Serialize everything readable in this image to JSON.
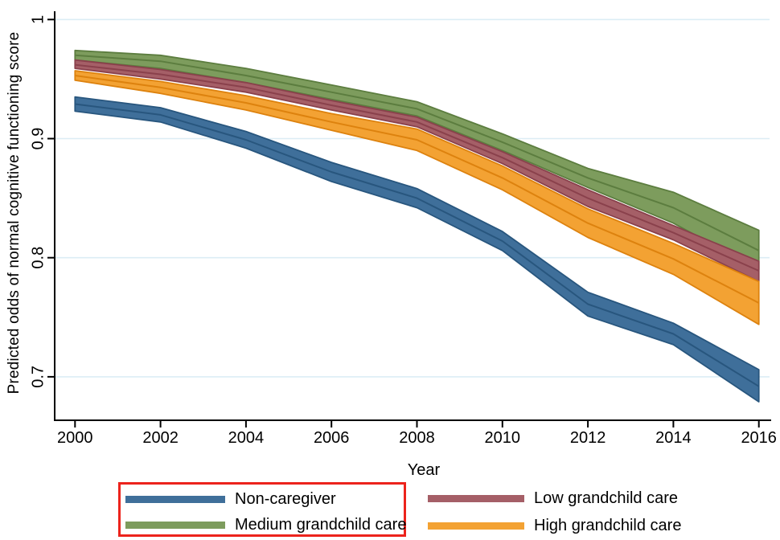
{
  "figure": {
    "background": "#ffffff",
    "axis_color": "#000000"
  },
  "chart_data": {
    "type": "area",
    "title": "",
    "xlabel": "Year",
    "ylabel": "Predicted odds of normal cognitive functioning score",
    "x": [
      2000,
      2002,
      2004,
      2006,
      2008,
      2010,
      2012,
      2014,
      2016
    ],
    "xtick_labels": [
      "2000",
      "2002",
      "2004",
      "2006",
      "2008",
      "2010",
      "2012",
      "2014",
      "2016"
    ],
    "yticks": [
      1,
      0.9,
      0.8,
      0.7
    ],
    "ytick_labels": [
      "1",
      "0.9",
      "0.8",
      "0.7"
    ],
    "ylim": [
      0.66,
      1.005
    ],
    "xlim": [
      2000,
      2016
    ],
    "grid": "horizontal",
    "gridline_color": "#dcedf5",
    "legend_position": "bottom",
    "series": [
      {
        "name": "Non-caregiver",
        "fill": "#3f6f9a",
        "edge": "#28567e",
        "center": [
          0.929,
          0.92,
          0.899,
          0.872,
          0.85,
          0.814,
          0.761,
          0.736,
          0.692
        ],
        "low": [
          0.923,
          0.914,
          0.892,
          0.864,
          0.842,
          0.806,
          0.751,
          0.727,
          0.679
        ],
        "high": [
          0.935,
          0.926,
          0.906,
          0.88,
          0.858,
          0.822,
          0.771,
          0.745,
          0.706
        ]
      },
      {
        "name": "Low grandchild care",
        "fill": "#a55f67",
        "edge": "#8a414c",
        "center": [
          0.962,
          0.954,
          0.943,
          0.928,
          0.914,
          0.884,
          0.85,
          0.821,
          0.789
        ],
        "low": [
          0.959,
          0.95,
          0.939,
          0.924,
          0.91,
          0.879,
          0.843,
          0.815,
          0.78
        ],
        "high": [
          0.966,
          0.958,
          0.947,
          0.932,
          0.918,
          0.889,
          0.857,
          0.827,
          0.797
        ]
      },
      {
        "name": "Medium grandchild care",
        "fill": "#7d9c5d",
        "edge": "#5c7d3f",
        "center": [
          0.97,
          0.965,
          0.953,
          0.939,
          0.925,
          0.897,
          0.867,
          0.842,
          0.806
        ],
        "low": [
          0.966,
          0.959,
          0.947,
          0.933,
          0.919,
          0.89,
          0.859,
          0.829,
          0.79
        ],
        "high": [
          0.974,
          0.97,
          0.959,
          0.945,
          0.931,
          0.904,
          0.875,
          0.855,
          0.823
        ]
      },
      {
        "name": "High grandchild care",
        "fill": "#f3a233",
        "edge": "#dd820e",
        "center": [
          0.953,
          0.943,
          0.93,
          0.914,
          0.899,
          0.867,
          0.829,
          0.799,
          0.762
        ],
        "low": [
          0.949,
          0.938,
          0.924,
          0.907,
          0.89,
          0.857,
          0.817,
          0.786,
          0.744
        ],
        "high": [
          0.957,
          0.948,
          0.936,
          0.921,
          0.908,
          0.877,
          0.841,
          0.812,
          0.78
        ]
      }
    ],
    "draw_order": [
      2,
      1,
      3,
      0
    ]
  },
  "annotation": {
    "type": "highlight-box",
    "color": "#ec231c",
    "enclosed_items": [
      "Non-caregiver",
      "Medium grandchild care"
    ]
  }
}
